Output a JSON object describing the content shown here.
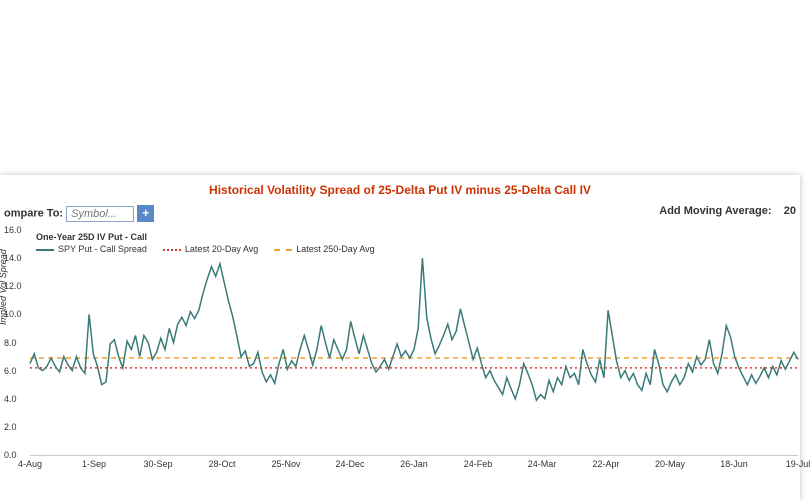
{
  "title": "Historical Volatility Spread of 25-Delta Put IV minus 25-Delta Call IV",
  "compare_label": "ompare To:",
  "symbol_placeholder": "Symbol...",
  "add_btn_label": "+",
  "add_mavg_label": "Add Moving Average:",
  "add_mavg_val": "20",
  "chart": {
    "sub_title": "One-Year 25D IV Put - Call",
    "ylabel": "Implied Vol Spread",
    "ylim": [
      0,
      16
    ],
    "ytick_step": 2,
    "x_categories": [
      "4-Aug",
      "1-Sep",
      "30-Sep",
      "28-Oct",
      "25-Nov",
      "24-Dec",
      "26-Jan",
      "24-Feb",
      "24-Mar",
      "22-Apr",
      "20-May",
      "18-Jun",
      "19-Jul"
    ],
    "series": {
      "name": "SPY Put - Call Spread",
      "color": "#3a7a78",
      "data": [
        6.5,
        7.2,
        6.2,
        6.0,
        6.3,
        6.9,
        6.3,
        5.9,
        7.0,
        6.4,
        6.0,
        7.0,
        6.2,
        5.8,
        10.0,
        7.2,
        6.3,
        5.0,
        5.2,
        7.9,
        8.2,
        7.0,
        6.2,
        8.1,
        7.5,
        8.5,
        7.0,
        8.5,
        8.0,
        6.8,
        7.3,
        8.3,
        7.5,
        9.0,
        8.0,
        9.3,
        9.8,
        9.2,
        10.2,
        9.7,
        10.3,
        11.5,
        12.5,
        13.4,
        12.7,
        13.6,
        12.3,
        11.0,
        9.9,
        8.5,
        7.0,
        7.4,
        6.3,
        6.5,
        7.3,
        5.9,
        5.2,
        5.7,
        5.1,
        6.5,
        7.5,
        6.1,
        6.7,
        6.3,
        7.5,
        8.5,
        7.5,
        6.4,
        7.5,
        9.2,
        8.0,
        6.9,
        8.2,
        7.5,
        6.8,
        7.5,
        9.5,
        8.3,
        7.2,
        8.5,
        7.5,
        6.5,
        5.9,
        6.3,
        6.8,
        6.1,
        7.0,
        7.9,
        7.0,
        7.4,
        6.9,
        7.5,
        9.0,
        14.0,
        9.8,
        8.3,
        7.2,
        7.8,
        8.5,
        9.3,
        8.2,
        8.8,
        10.4,
        9.2,
        8.0,
        6.8,
        7.6,
        6.5,
        5.5,
        6.0,
        5.3,
        4.8,
        4.3,
        5.5,
        4.7,
        4.0,
        5.0,
        6.5,
        5.8,
        5.0,
        3.9,
        4.3,
        4.0,
        5.3,
        4.5,
        5.5,
        5.0,
        6.3,
        5.5,
        5.8,
        5.0,
        7.5,
        6.5,
        5.7,
        5.2,
        6.8,
        5.5,
        10.3,
        8.5,
        6.7,
        5.5,
        6.0,
        5.3,
        5.8,
        5.0,
        4.6,
        5.8,
        5.0,
        7.5,
        6.5,
        5.0,
        4.5,
        5.2,
        5.7,
        5.0,
        5.5,
        6.5,
        5.9,
        7.0,
        6.4,
        6.8,
        8.2,
        6.5,
        5.8,
        7.2,
        9.2,
        8.4,
        7.0,
        6.2,
        5.6,
        5.0,
        5.7,
        5.1,
        5.6,
        6.2,
        5.5,
        6.3,
        5.7,
        6.7,
        6.1,
        6.7,
        7.3,
        6.8
      ]
    },
    "ref_lines": [
      {
        "name": "Latest 20-Day Avg",
        "value": 6.2,
        "color": "#d43b2a",
        "style": "dotted"
      },
      {
        "name": "Latest 250-Day Avg",
        "value": 6.9,
        "color": "#f0a030",
        "style": "dashed"
      }
    ],
    "grid_color": "#f0f0f0",
    "background": "#ffffff"
  }
}
